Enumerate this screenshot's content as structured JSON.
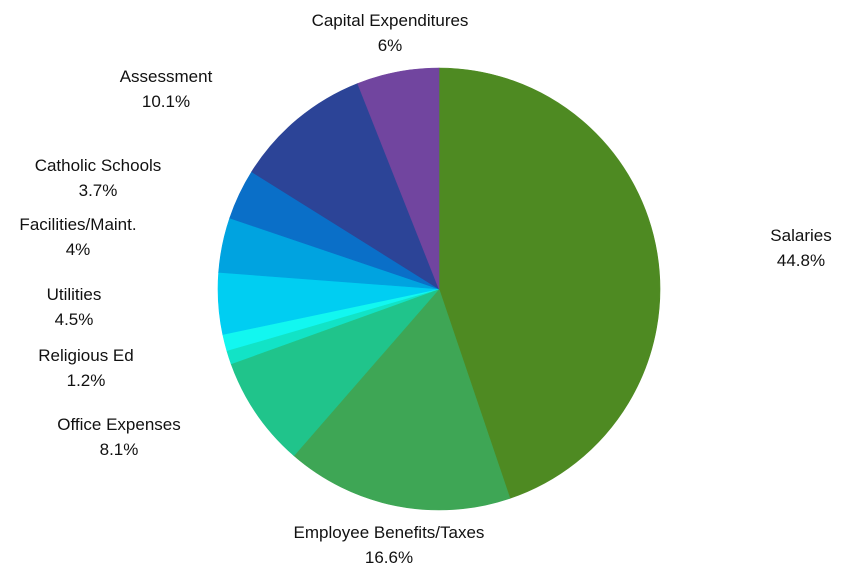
{
  "chart_data": {
    "type": "pie",
    "title": "",
    "slices": [
      {
        "label": "Salaries",
        "value_label": "44.8%",
        "value": 44.8,
        "color": "#4e8a22"
      },
      {
        "label": "Employee Benefits/Taxes",
        "value_label": "16.6%",
        "value": 16.6,
        "color": "#3ea655"
      },
      {
        "label": "Office Expenses",
        "value_label": "8.1%",
        "value": 8.1,
        "color": "#20c48b"
      },
      {
        "label": "",
        "value_label": "",
        "value": 1.0,
        "color": "#12e3c6"
      },
      {
        "label": "Religious Ed",
        "value_label": "1.2%",
        "value": 1.2,
        "color": "#12f7f0"
      },
      {
        "label": "Utilities",
        "value_label": "4.5%",
        "value": 4.5,
        "color": "#00cef2"
      },
      {
        "label": "Facilities/Maint.",
        "value_label": "4%",
        "value": 4.0,
        "color": "#00a3e0"
      },
      {
        "label": "Catholic Schools",
        "value_label": "3.7%",
        "value": 3.7,
        "color": "#0a6fc8"
      },
      {
        "label": "Assessment",
        "value_label": "10.1%",
        "value": 10.1,
        "color": "#2c4497"
      },
      {
        "label": "Capital Expenditures",
        "value_label": "6%",
        "value": 6.0,
        "color": "#71459f"
      }
    ]
  }
}
